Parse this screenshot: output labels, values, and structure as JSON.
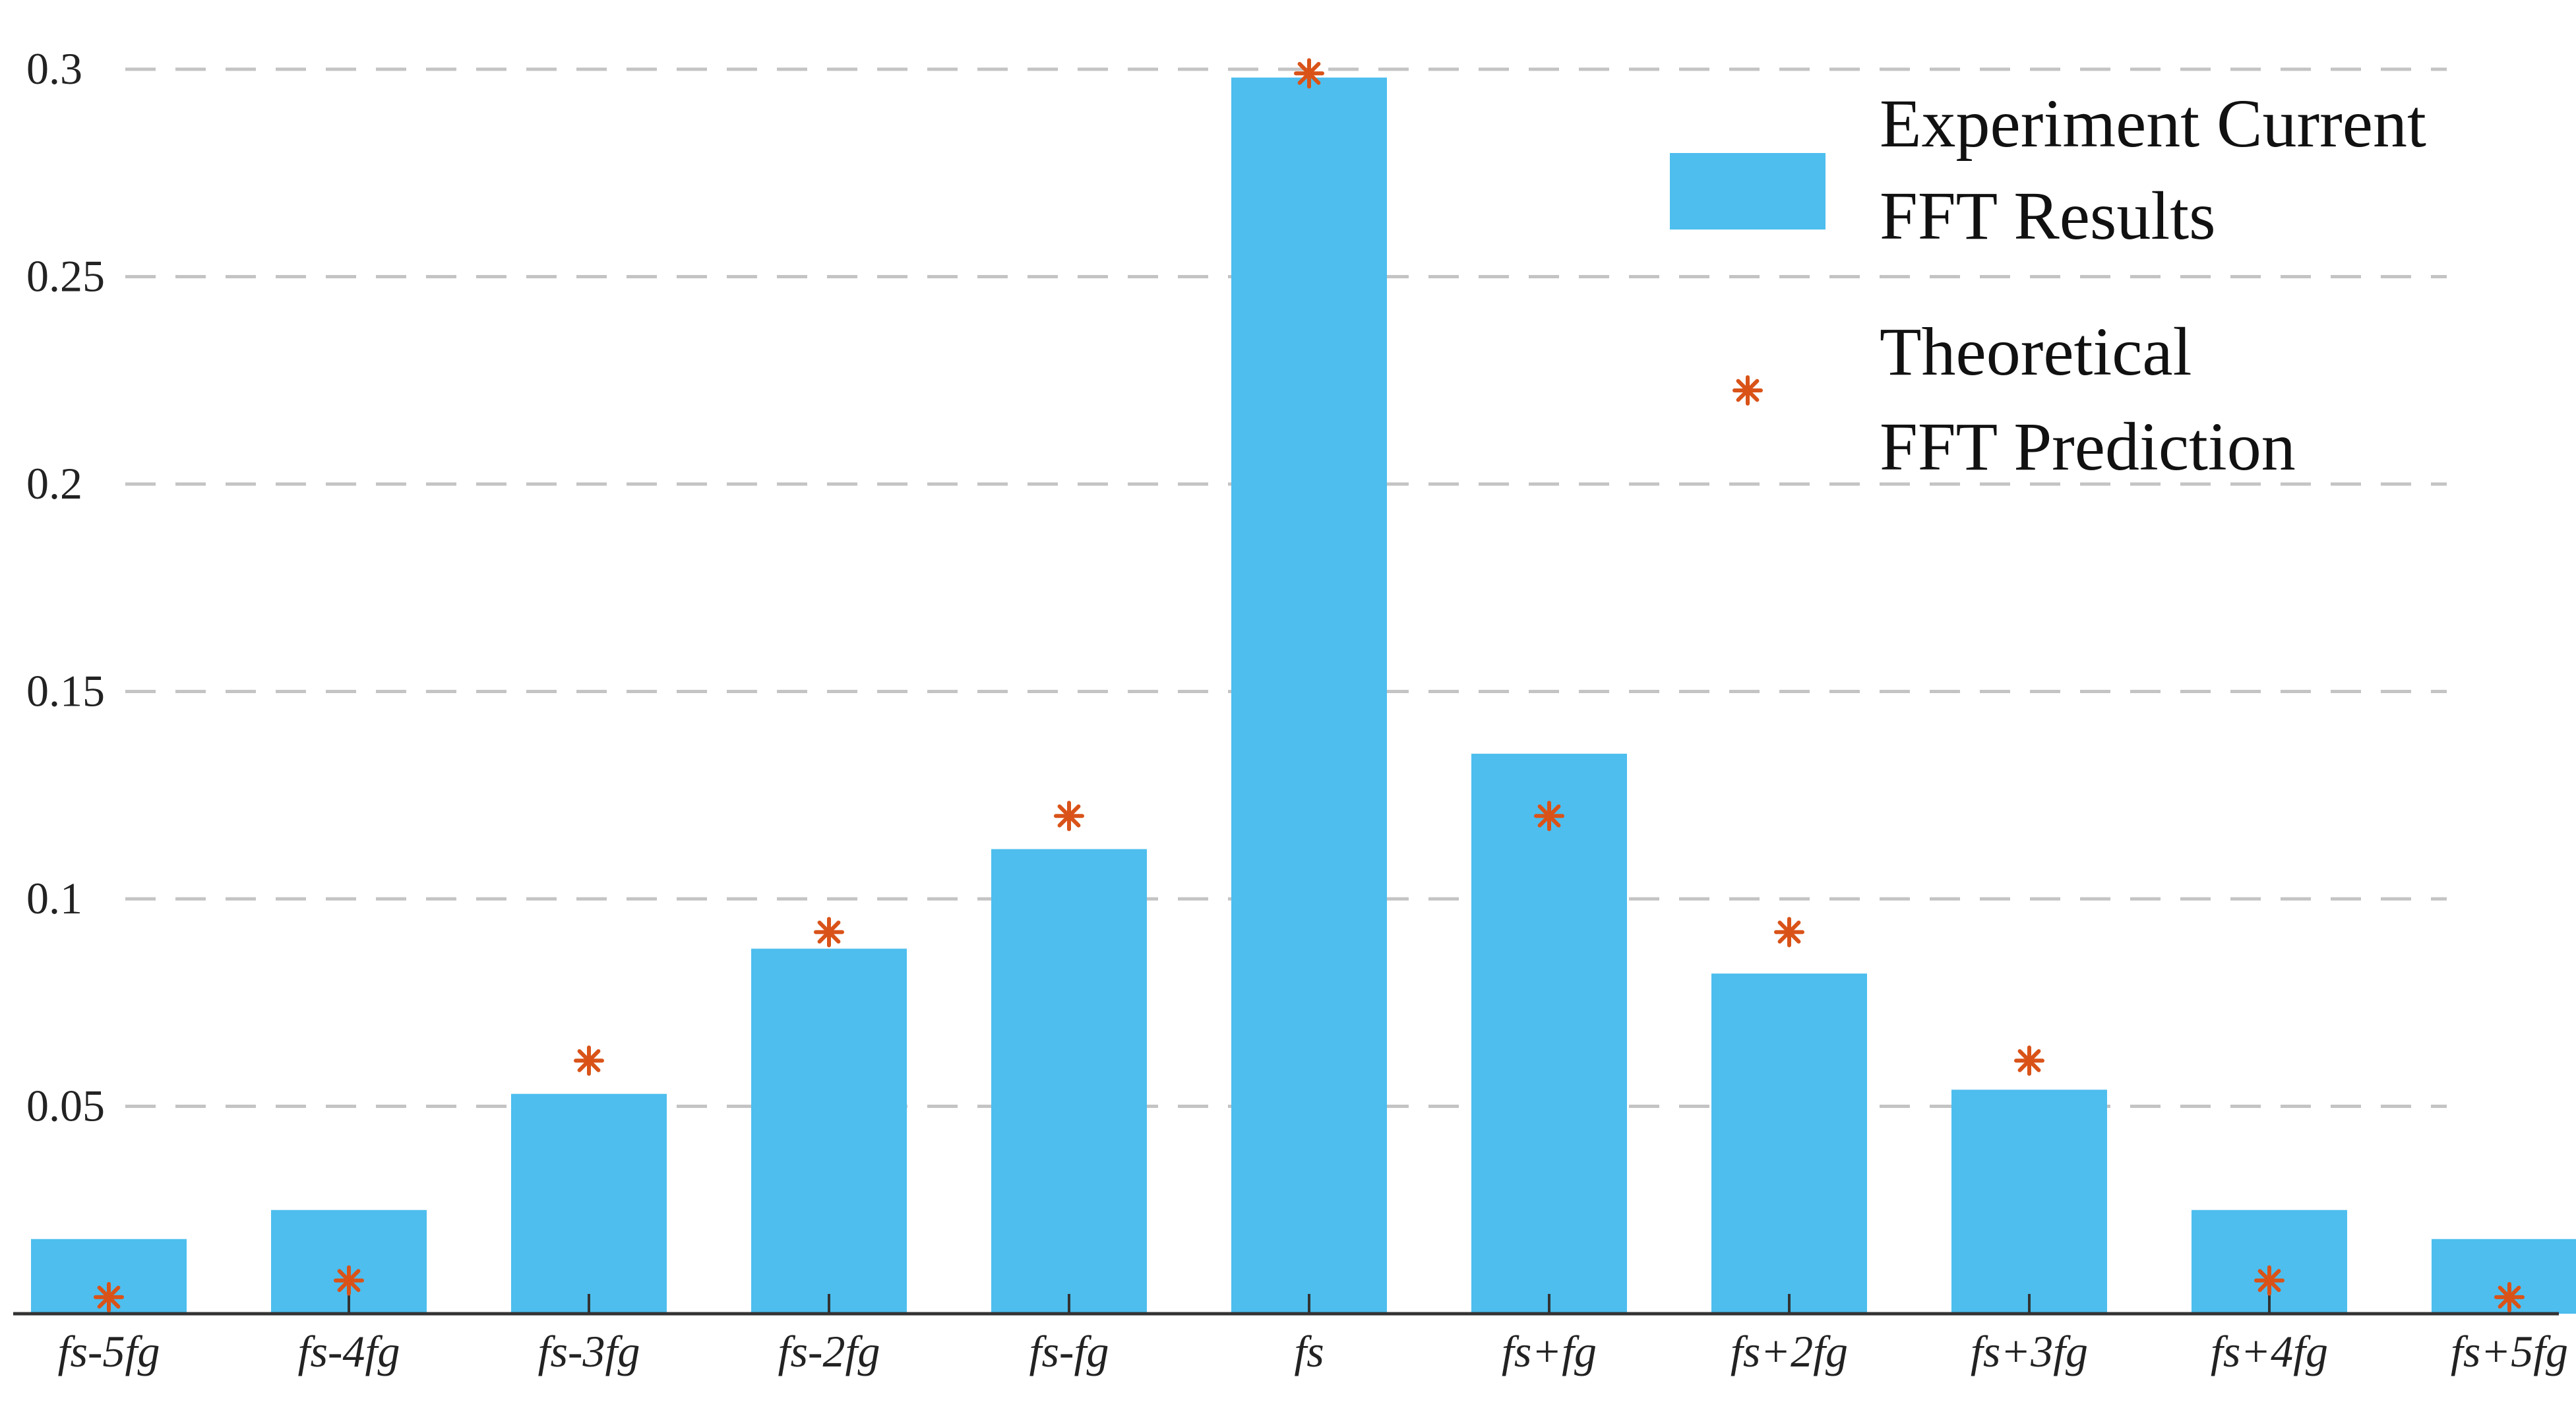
{
  "chart_data": {
    "type": "bar",
    "categories": [
      "fs-5fg",
      "fs-4fg",
      "fs-3fg",
      "fs-2fg",
      "fs-fg",
      "fs",
      "fs+fg",
      "fs+2fg",
      "fs+3fg",
      "fs+4fg",
      "fs+5fg"
    ],
    "ylim": [
      0,
      0.3
    ],
    "yticks": [
      "0.05",
      "0.1",
      "0.15",
      "0.2",
      "0.25",
      "0.3"
    ],
    "grid": "horizontal dashed",
    "legend_position": "top-right",
    "series": [
      {
        "name_lines": [
          "Experiment Current",
          "FFT Results"
        ],
        "kind": "bar",
        "color": "#4DBEEE",
        "values": [
          0.018,
          0.025,
          0.053,
          0.088,
          0.112,
          0.298,
          0.135,
          0.082,
          0.054,
          0.025,
          0.018
        ]
      },
      {
        "name_lines": [
          "Theoretical",
          "FFT Prediction"
        ],
        "kind": "marker",
        "marker": "asterisk",
        "color": "#D95319",
        "values": [
          0.004,
          0.008,
          0.061,
          0.092,
          0.12,
          0.299,
          0.12,
          0.092,
          0.061,
          0.008,
          0.004
        ]
      }
    ]
  }
}
